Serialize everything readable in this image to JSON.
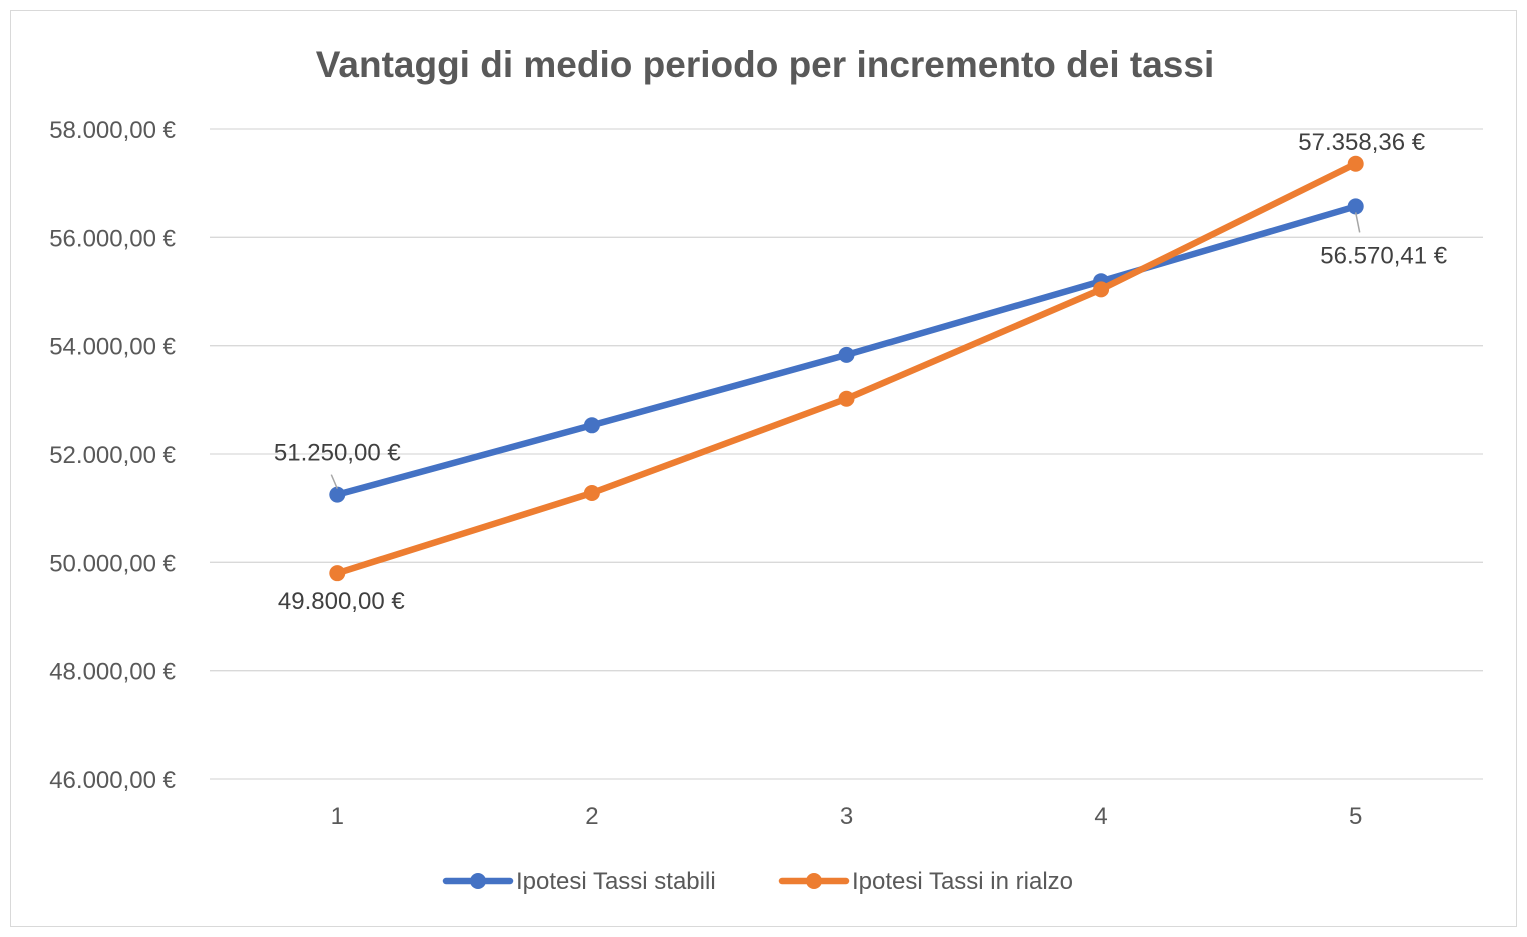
{
  "chart_data": {
    "type": "line",
    "title": "Vantaggi di medio periodo per incremento dei tassi",
    "xlabel": "",
    "ylabel": "",
    "categories": [
      "1",
      "2",
      "3",
      "4",
      "5"
    ],
    "ylim": [
      46000,
      58000
    ],
    "yticks": [
      46000,
      48000,
      50000,
      52000,
      54000,
      56000,
      58000
    ],
    "ytick_labels": [
      "46.000,00 €",
      "48.000,00 €",
      "50.000,00 €",
      "52.000,00 €",
      "54.000,00 €",
      "56.000,00 €",
      "58.000,00 €"
    ],
    "grid": "horizontal",
    "legend_position": "bottom",
    "series": [
      {
        "name": "Ipotesi Tassi stabili",
        "color": "#4472c4",
        "values": [
          51250,
          52530,
          53830,
          55190,
          56570.41
        ],
        "data_labels": [
          {
            "index": 0,
            "text": "51.250,00 €"
          },
          {
            "index": 4,
            "text": "56.570,41 €"
          }
        ]
      },
      {
        "name": "Ipotesi Tassi in rialzo",
        "color": "#ed7d31",
        "values": [
          49800,
          51280,
          53020,
          55040,
          57358.36
        ],
        "data_labels": [
          {
            "index": 0,
            "text": "49.800,00 €"
          },
          {
            "index": 4,
            "text": "57.358,36 €"
          }
        ]
      }
    ]
  }
}
